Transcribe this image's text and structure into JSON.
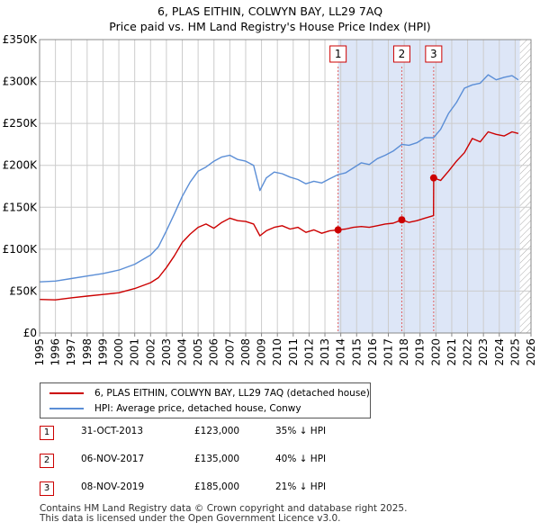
{
  "header": {
    "title_line1": "6, PLAS EITHIN, COLWYN BAY, LL29 7AQ",
    "title_line2": "Price paid vs. HM Land Registry's House Price Index (HPI)"
  },
  "colors": {
    "price_line": "#cc0000",
    "hpi_line": "#5b8ed6",
    "shade": "#dde6f7",
    "grid": "#cccccc",
    "marker_line": "#e06060"
  },
  "chart_data": {
    "type": "line",
    "title": "Price paid vs. HM Land Registry's House Price Index (HPI)",
    "xlabel": "",
    "ylabel": "",
    "xlim": [
      1995,
      2026
    ],
    "ylim": [
      0,
      350000
    ],
    "y_ticks": [
      {
        "value": 0,
        "label": "£0"
      },
      {
        "value": 50000,
        "label": "£50K"
      },
      {
        "value": 100000,
        "label": "£100K"
      },
      {
        "value": 150000,
        "label": "£150K"
      },
      {
        "value": 200000,
        "label": "£200K"
      },
      {
        "value": 250000,
        "label": "£250K"
      },
      {
        "value": 300000,
        "label": "£300K"
      },
      {
        "value": 350000,
        "label": "£350K"
      }
    ],
    "x_ticks": [
      "1995",
      "1996",
      "1997",
      "1998",
      "1999",
      "2000",
      "2001",
      "2002",
      "2003",
      "2004",
      "2005",
      "2006",
      "2007",
      "2008",
      "2009",
      "2010",
      "2011",
      "2012",
      "2013",
      "2014",
      "2015",
      "2016",
      "2017",
      "2018",
      "2019",
      "2020",
      "2021",
      "2022",
      "2023",
      "2024",
      "2025",
      "2026"
    ],
    "shaded_ranges": [
      [
        2013.83,
        2025.3
      ]
    ],
    "hatched_from": 2025.3,
    "sale_markers": [
      {
        "label": "1",
        "x": 2013.83,
        "value": 123000
      },
      {
        "label": "2",
        "x": 2017.85,
        "value": 135000
      },
      {
        "label": "3",
        "x": 2019.86,
        "value": 185000
      }
    ],
    "series": [
      {
        "name": "6, PLAS EITHIN, COLWYN BAY, LL29 7AQ (detached house)",
        "color": "#cc0000",
        "x": [
          1995,
          1996,
          1997,
          1998,
          1999,
          2000,
          2001,
          2002,
          2002.5,
          2003,
          2003.5,
          2004,
          2004.5,
          2005,
          2005.5,
          2006,
          2006.5,
          2007,
          2007.5,
          2008,
          2008.5,
          2008.9,
          2009.3,
          2009.8,
          2010.3,
          2010.8,
          2011.3,
          2011.8,
          2012.3,
          2012.8,
          2013.3,
          2013.83,
          2014.3,
          2014.8,
          2015.3,
          2015.8,
          2016.3,
          2016.8,
          2017.3,
          2017.85,
          2018.3,
          2018.8,
          2019.3,
          2019.85,
          2019.86,
          2020.3,
          2020.8,
          2021.3,
          2021.8,
          2022.3,
          2022.8,
          2023.3,
          2023.8,
          2024.3,
          2024.8,
          2025.2
        ],
        "values": [
          40000,
          39500,
          42000,
          44000,
          46000,
          48000,
          53000,
          60000,
          66000,
          78000,
          92000,
          108000,
          118000,
          126000,
          130000,
          125000,
          132000,
          137000,
          134000,
          133000,
          130000,
          116000,
          122000,
          126000,
          128000,
          124000,
          126000,
          120000,
          123000,
          119000,
          122000,
          123000,
          124000,
          126000,
          127000,
          126000,
          128000,
          130000,
          131000,
          135000,
          132000,
          134000,
          137000,
          140000,
          185000,
          182000,
          193000,
          205000,
          215000,
          232000,
          228000,
          240000,
          237000,
          235000,
          240000,
          238000
        ]
      },
      {
        "name": "HPI: Average price, detached house, Conwy",
        "color": "#5b8ed6",
        "x": [
          1995,
          1996,
          1997,
          1998,
          1999,
          2000,
          2001,
          2002,
          2002.5,
          2003,
          2003.5,
          2004,
          2004.5,
          2005,
          2005.5,
          2006,
          2006.5,
          2007,
          2007.5,
          2008,
          2008.5,
          2008.9,
          2009.3,
          2009.8,
          2010.3,
          2010.8,
          2011.3,
          2011.8,
          2012.3,
          2012.8,
          2013.3,
          2013.83,
          2014.3,
          2014.8,
          2015.3,
          2015.8,
          2016.3,
          2016.8,
          2017.3,
          2017.85,
          2018.3,
          2018.8,
          2019.3,
          2019.85,
          2020.3,
          2020.8,
          2021.3,
          2021.8,
          2022.3,
          2022.8,
          2023.3,
          2023.8,
          2024.3,
          2024.8,
          2025.2
        ],
        "values": [
          61000,
          62000,
          65000,
          68000,
          71000,
          75000,
          82000,
          93000,
          103000,
          122000,
          142000,
          163000,
          180000,
          193000,
          198000,
          205000,
          210000,
          212000,
          207000,
          205000,
          200000,
          170000,
          185000,
          192000,
          190000,
          186000,
          183000,
          178000,
          181000,
          179000,
          184000,
          189000,
          191000,
          197000,
          203000,
          201000,
          208000,
          212000,
          217000,
          225000,
          224000,
          227000,
          233000,
          233000,
          243000,
          262000,
          275000,
          292000,
          296000,
          298000,
          308000,
          302000,
          305000,
          307000,
          302000
        ]
      }
    ]
  },
  "legend": {
    "entries": [
      {
        "label": "6, PLAS EITHIN, COLWYN BAY, LL29 7AQ (detached house)",
        "color": "#cc0000"
      },
      {
        "label": "HPI: Average price, detached house, Conwy",
        "color": "#5b8ed6"
      }
    ]
  },
  "sales": [
    {
      "num": "1",
      "date": "31-OCT-2013",
      "price": "£123,000",
      "hpi": "35% ↓ HPI"
    },
    {
      "num": "2",
      "date": "06-NOV-2017",
      "price": "£135,000",
      "hpi": "40% ↓ HPI"
    },
    {
      "num": "3",
      "date": "08-NOV-2019",
      "price": "£185,000",
      "hpi": "21% ↓ HPI"
    }
  ],
  "footer": {
    "line1": "Contains HM Land Registry data © Crown copyright and database right 2025.",
    "line2": "This data is licensed under the Open Government Licence v3.0."
  }
}
